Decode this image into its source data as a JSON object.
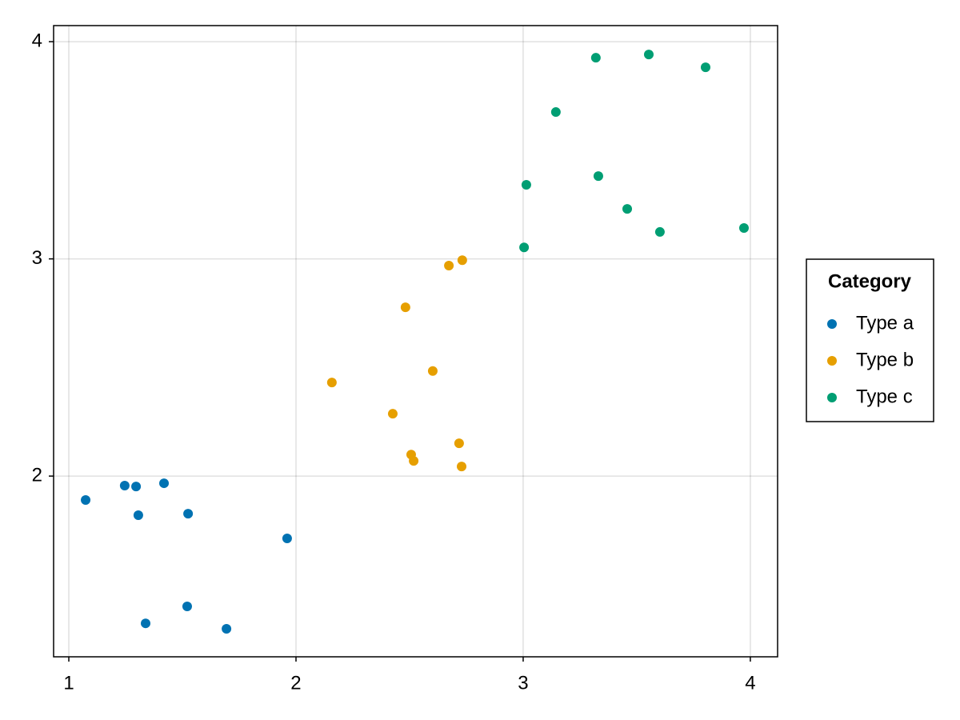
{
  "chart_data": {
    "type": "scatter",
    "legend_title": "Category",
    "legend_position": "right",
    "grid": true,
    "xlim": [
      0.933,
      4.12
    ],
    "ylim": [
      1.168,
      4.074
    ],
    "xticks": [
      1,
      2,
      3,
      4
    ],
    "yticks": [
      2,
      3,
      4
    ],
    "series": [
      {
        "name": "Type a",
        "color": "#0072b2",
        "x": [
          1.074,
          1.246,
          1.296,
          1.419,
          1.306,
          1.525,
          1.961,
          1.521,
          1.338,
          1.694
        ],
        "values": [
          1.89,
          1.956,
          1.952,
          1.967,
          1.82,
          1.827,
          1.713,
          1.4,
          1.322,
          1.297
        ]
      },
      {
        "name": "Type b",
        "color": "#e69f00",
        "x": [
          2.158,
          2.482,
          2.673,
          2.732,
          2.602,
          2.426,
          2.507,
          2.518,
          2.718,
          2.729
        ],
        "values": [
          2.431,
          2.777,
          2.969,
          2.994,
          2.484,
          2.287,
          2.099,
          2.07,
          2.151,
          2.044
        ]
      },
      {
        "name": "Type c",
        "color": "#009e73",
        "x": [
          3.32,
          3.553,
          3.803,
          3.144,
          3.014,
          3.331,
          3.458,
          3.602,
          3.972,
          3.004
        ],
        "values": [
          3.926,
          3.941,
          3.882,
          3.676,
          3.341,
          3.381,
          3.23,
          3.124,
          3.142,
          3.053
        ]
      }
    ]
  }
}
